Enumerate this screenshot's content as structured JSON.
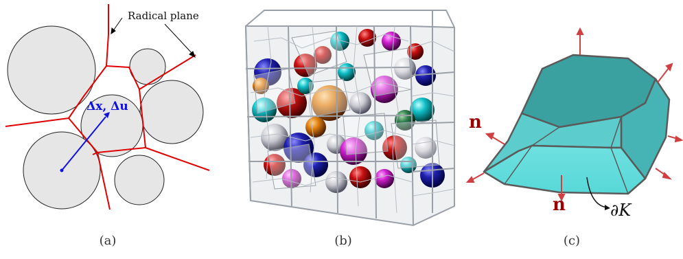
{
  "panel_a": {
    "annotation": "Radical plane",
    "vector_label": "Δx, Δu",
    "caption": "(a)"
  },
  "panel_b": {
    "caption": "(b)"
  },
  "panel_c": {
    "normal_label_top": "n",
    "normal_label_bottom": "n",
    "boundary_label": "∂K",
    "caption": "(c)"
  },
  "colors": {
    "radical_plane": "#e00000",
    "vector": "#1010e0",
    "circle_fill": "#e6e6e6",
    "polyhedron_fill": "#48c8c8",
    "normal_arrow": "#d04040",
    "normal_label": "#990000"
  }
}
